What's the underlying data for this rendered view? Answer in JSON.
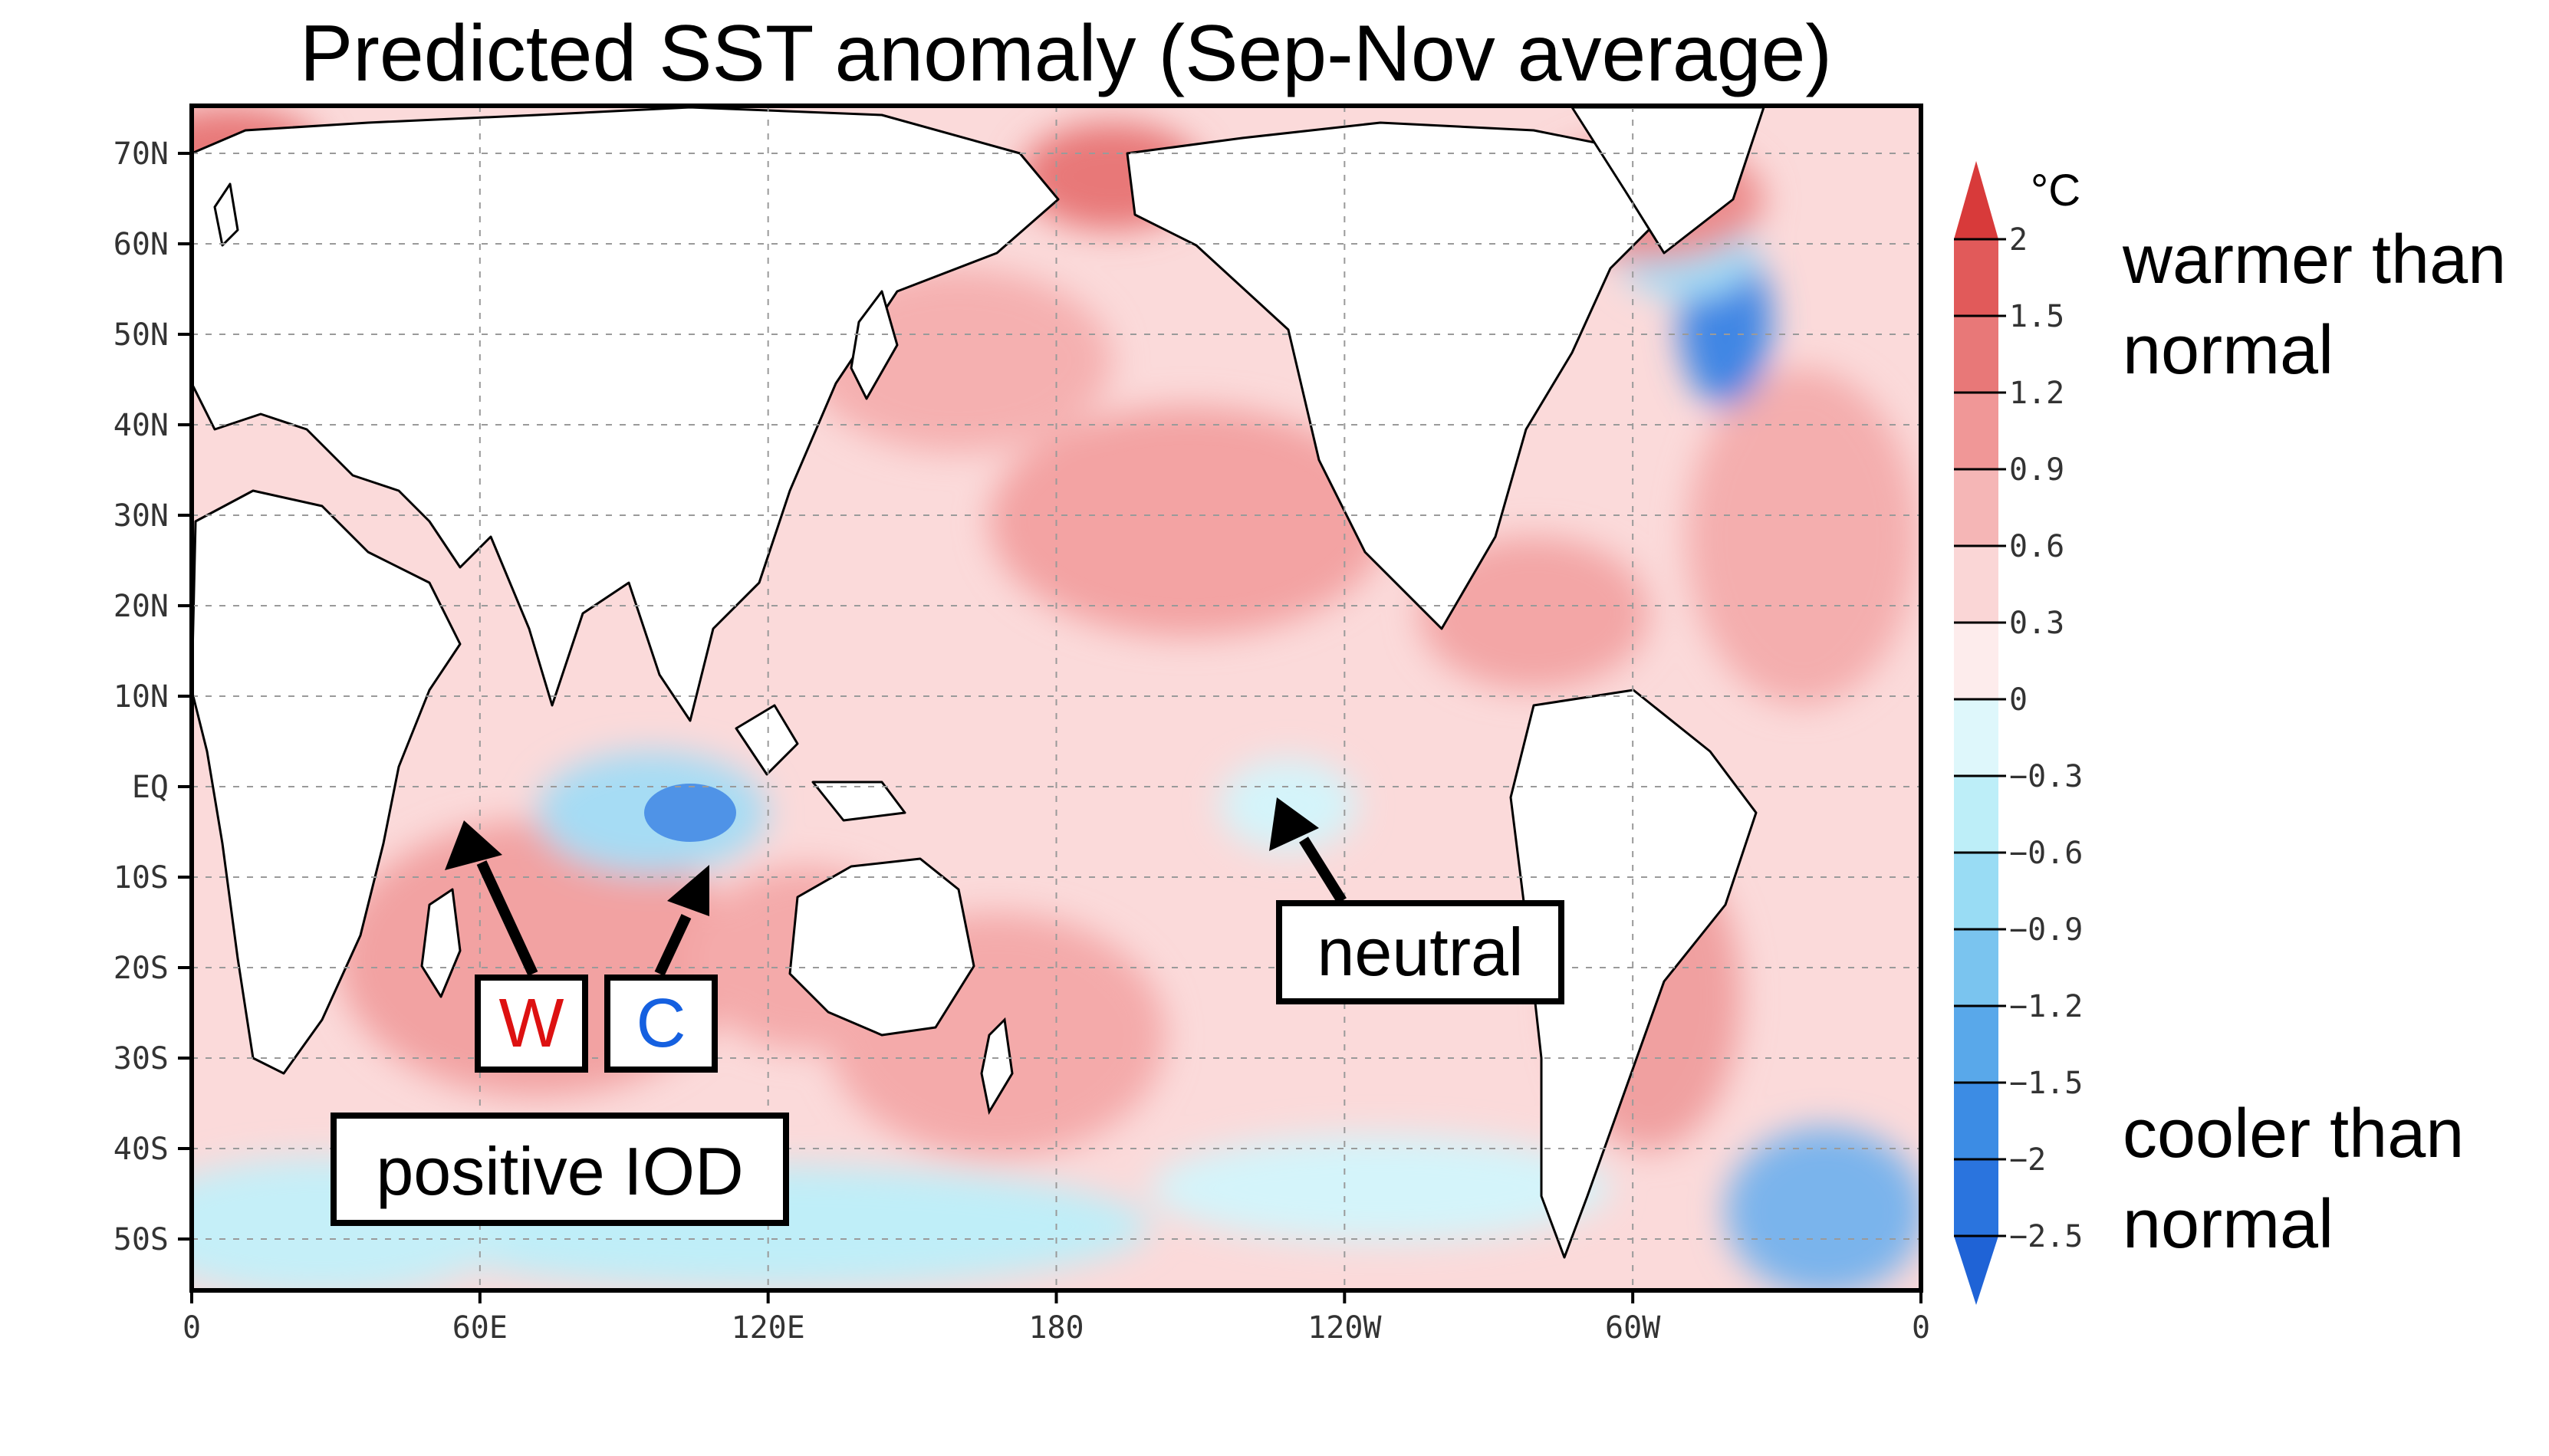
{
  "title": "Predicted SST anomaly (Sep-Nov average)",
  "map": {
    "lat_ticks": [
      "70N",
      "60N",
      "50N",
      "40N",
      "30N",
      "20N",
      "10N",
      "EQ",
      "10S",
      "20S",
      "30S",
      "40S",
      "50S"
    ],
    "lon_ticks": [
      "0",
      "60E",
      "120E",
      "180",
      "120W",
      "60W",
      "0"
    ]
  },
  "annotations": {
    "w_label": "W",
    "c_label": "C",
    "neutral_label": "neutral",
    "iod_label": "positive IOD"
  },
  "colorbar": {
    "unit": "°C",
    "levels": [
      "2",
      "1.5",
      "1.2",
      "0.9",
      "0.6",
      "0.3",
      "0",
      "−0.3",
      "−0.6",
      "−0.9",
      "−1.2",
      "−1.5",
      "−2",
      "−2.5"
    ],
    "colors": [
      "#d83a3a",
      "#e15a5a",
      "#e87878",
      "#f09797",
      "#f5b6b6",
      "#fad6d6",
      "#fdecec",
      "#def7fb",
      "#bdeef8",
      "#99dcf4",
      "#7ac4ef",
      "#59a8ea",
      "#3c8ce4",
      "#2a74de",
      "#1f63d6"
    ]
  },
  "legend_text": {
    "warmer": "warmer than normal",
    "cooler": "cooler than normal"
  },
  "colors": {
    "ocean_warm_light": "#fbdada",
    "ocean_warm": "#f5b0b0",
    "ocean_warm_strong": "#e66a6a",
    "ocean_cool": "#bfeef8",
    "ocean_cool_strong": "#3f86e4",
    "land": "#ffffff",
    "w_text": "#dd1111",
    "c_text": "#1560e0"
  }
}
